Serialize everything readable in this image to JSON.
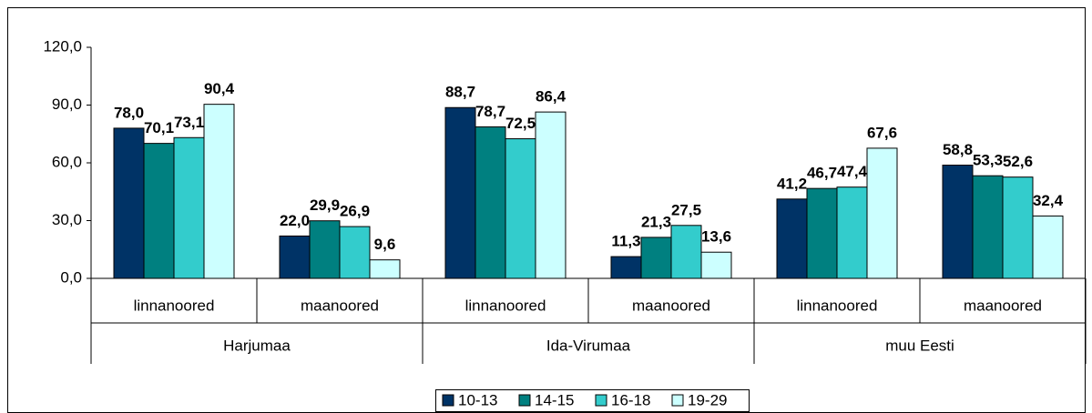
{
  "chart_data": {
    "type": "bar",
    "categories": [
      "linnanoored",
      "maanoored",
      "linnanoored",
      "maanoored",
      "linnanoored",
      "maanoored"
    ],
    "groups": [
      "Harjumaa",
      "Ida-Virumaa",
      "muu Eesti"
    ],
    "series": [
      {
        "name": "10-13",
        "color": "#003366",
        "values": [
          78.0,
          22.0,
          88.7,
          11.3,
          41.2,
          58.8
        ],
        "value_labels": [
          "78,0",
          "22,0",
          "88,7",
          "11,3",
          "41,2",
          "58,8"
        ]
      },
      {
        "name": "14-15",
        "color": "#008080",
        "values": [
          70.1,
          29.9,
          78.7,
          21.3,
          46.7,
          53.3
        ],
        "value_labels": [
          "70,1",
          "29,9",
          "78,7",
          "21,3",
          "46,7",
          "53,3"
        ]
      },
      {
        "name": "16-18",
        "color": "#33CCCC",
        "values": [
          73.1,
          26.9,
          72.5,
          27.5,
          47.4,
          52.6
        ],
        "value_labels": [
          "73,1",
          "26,9",
          "72,5",
          "27,5",
          "47,4",
          "52,6"
        ]
      },
      {
        "name": "19-29",
        "color": "#CCFFFF",
        "values": [
          90.4,
          9.6,
          86.4,
          13.6,
          67.6,
          32.4
        ],
        "value_labels": [
          "90,4",
          "9,6",
          "86,4",
          "13,6",
          "67,6",
          "32,4"
        ]
      }
    ],
    "ylim": [
      0,
      120
    ],
    "yticks": [
      {
        "value": 0,
        "label": "0,0"
      },
      {
        "value": 30,
        "label": "30,0"
      },
      {
        "value": 60,
        "label": "60,0"
      },
      {
        "value": 90,
        "label": "90,0"
      },
      {
        "value": 120,
        "label": "120,0"
      }
    ],
    "grid": false,
    "legend": "bottom"
  }
}
